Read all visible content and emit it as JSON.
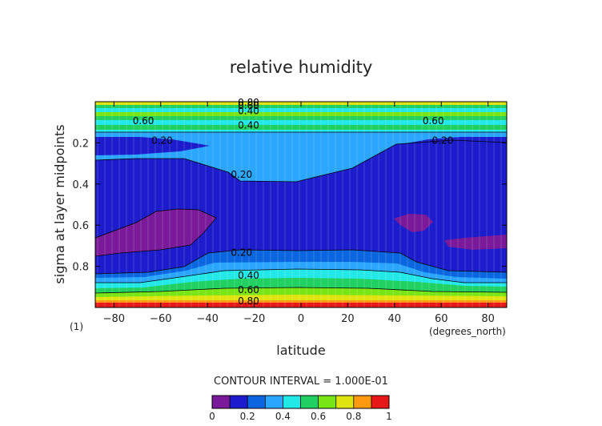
{
  "chart_data": {
    "type": "contour",
    "title": "relative humidity",
    "xlabel": "latitude",
    "xunit": "(degrees_north)",
    "ylabel": "sigma at layer midpoints",
    "yaxis_note": "(1)",
    "xlim": [
      -88,
      88
    ],
    "ylim": [
      1.0,
      0.0
    ],
    "y_inverted": true,
    "grid": false,
    "x_ticks": [
      -80,
      -60,
      -40,
      -20,
      0,
      20,
      40,
      60,
      80
    ],
    "x_tick_labels": [
      "−80",
      "−60",
      "−40",
      "−20",
      "0",
      "20",
      "40",
      "60",
      "80"
    ],
    "y_ticks": [
      0.2,
      0.4,
      0.6,
      0.8
    ],
    "y_tick_labels": [
      "0.2",
      "0.4",
      "0.6",
      "0.8"
    ],
    "contour_interval_text": "CONTOUR INTERVAL = 1.000E-01",
    "colorbar": {
      "levels": [
        0,
        0.1,
        0.2,
        0.3,
        0.4,
        0.5,
        0.6,
        0.7,
        0.8,
        0.9,
        1.0
      ],
      "tick_labels": [
        "0",
        "0.2",
        "0.4",
        "0.6",
        "0.8",
        "1"
      ],
      "tick_values": [
        0,
        0.2,
        0.4,
        0.6,
        0.8,
        1.0
      ],
      "colors": [
        "#7a1a9a",
        "#1c1ccc",
        "#0a66e0",
        "#2aa6ff",
        "#22e8e8",
        "#20d060",
        "#78e614",
        "#e0e40e",
        "#ff9a10",
        "#e81818",
        "#ff9a9a"
      ]
    },
    "contour_labels": [
      {
        "text": "0.80",
        "x": -27,
        "y": 0.0
      },
      {
        "text": "0.60",
        "x": -27,
        "y": 0.015
      },
      {
        "text": "0.60",
        "x": -72,
        "y": 0.09
      },
      {
        "text": "0.60",
        "x": 52,
        "y": 0.09
      },
      {
        "text": "0.40",
        "x": -27,
        "y": 0.04
      },
      {
        "text": "0.40",
        "x": -27,
        "y": 0.11
      },
      {
        "text": "0.20",
        "x": -64,
        "y": 0.185
      },
      {
        "text": "0.20",
        "x": 56,
        "y": 0.185
      },
      {
        "text": "0.20",
        "x": -30,
        "y": 0.35
      },
      {
        "text": "0.20",
        "x": -30,
        "y": 0.73
      },
      {
        "text": "0.40",
        "x": -27,
        "y": 0.84
      },
      {
        "text": "0.60",
        "x": -27,
        "y": 0.91
      },
      {
        "text": "0.80",
        "x": -27,
        "y": 0.965
      }
    ]
  }
}
